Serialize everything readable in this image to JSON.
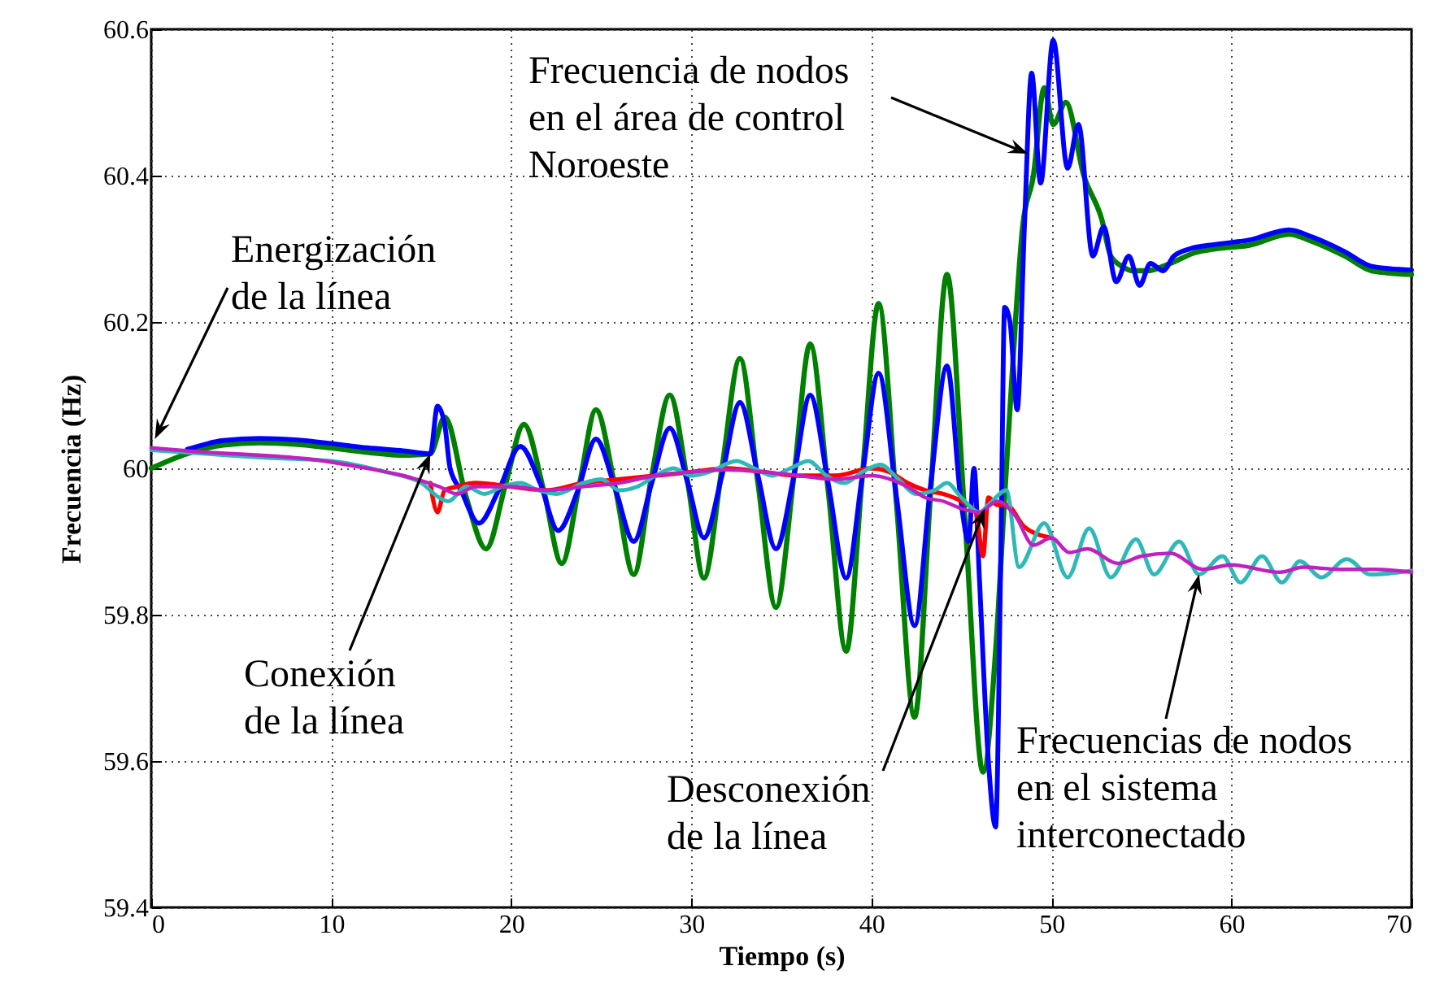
{
  "chart_data": {
    "type": "line",
    "xlabel": "Tiempo (s)",
    "ylabel": "Frecuencia (Hz)",
    "xlim": [
      0,
      70
    ],
    "xticks": [
      0,
      10,
      20,
      30,
      40,
      50,
      60,
      70
    ],
    "ylim": [
      59.4,
      60.6
    ],
    "yticks": [
      59.4,
      59.6,
      59.8,
      {
        "value": 60,
        "label": "60"
      },
      60.2,
      60.4,
      60.6
    ],
    "grid": true,
    "series": [
      {
        "color": "#008000",
        "x": [
          0,
          2,
          4,
          6,
          8,
          10,
          12,
          14,
          15.5,
          16.3,
          17.5,
          18.6,
          19.7,
          20.7,
          21.8,
          22.8,
          23.8,
          24.7,
          25.8,
          26.8,
          27.8,
          28.8,
          29.8,
          30.7,
          31.7,
          32.7,
          33.7,
          34.7,
          35.7,
          36.6,
          37.6,
          38.6,
          39.5,
          40.4,
          41.4,
          42.4,
          43.3,
          44.2,
          45.2,
          46.2,
          46.9,
          47.4,
          48.0,
          48.4,
          49.0,
          49.6,
          50.1,
          50.8,
          51.8,
          52.8,
          53.3,
          54.0,
          54.5,
          55.3,
          56.6,
          58,
          59.1,
          61,
          63.2,
          64.5,
          66.3,
          67.8,
          70
        ],
        "values": [
          60.0,
          60.02,
          60.032,
          60.035,
          60.033,
          60.028,
          60.022,
          60.018,
          60.02,
          60.07,
          59.96,
          59.89,
          59.98,
          60.06,
          59.97,
          59.87,
          59.98,
          60.08,
          59.97,
          59.855,
          59.99,
          60.1,
          59.98,
          59.85,
          60.0,
          60.15,
          59.98,
          59.81,
          59.99,
          60.17,
          59.97,
          59.75,
          59.99,
          60.225,
          59.95,
          59.66,
          59.97,
          60.265,
          59.93,
          59.585,
          59.75,
          59.96,
          60.2,
          60.33,
          60.4,
          60.52,
          60.47,
          60.5,
          60.4,
          60.34,
          60.29,
          60.275,
          60.27,
          60.27,
          60.28,
          60.295,
          60.3,
          60.305,
          60.32,
          60.31,
          60.29,
          60.27,
          60.265
        ]
      },
      {
        "color": "#0000ff",
        "x": [
          2,
          4,
          6,
          8,
          10,
          12,
          14,
          15.5,
          15.9,
          16.3,
          16.6,
          17.2,
          18.2,
          19.3,
          20.5,
          21.6,
          22.6,
          23.7,
          24.7,
          25.8,
          26.8,
          27.8,
          28.8,
          29.8,
          30.7,
          31.7,
          32.7,
          33.7,
          34.7,
          35.7,
          36.6,
          37.6,
          38.6,
          39.5,
          40.4,
          41.4,
          42.4,
          43.3,
          44.2,
          45.0,
          45.4,
          45.7,
          46.0,
          46.5,
          46.9,
          47.2,
          47.4,
          47.7,
          48.1,
          48.5,
          48.9,
          49.4,
          50.1,
          50.9,
          51.5,
          52.3,
          52.9,
          53.6,
          54.3,
          54.9,
          55.5,
          56.2,
          56.8,
          57.7,
          59.1,
          61,
          63.2,
          64.5,
          66.3,
          67.8,
          70
        ],
        "values": [
          60.026,
          60.038,
          60.041,
          60.039,
          60.034,
          60.028,
          60.024,
          60.02,
          60.085,
          60.06,
          60.0,
          59.97,
          59.925,
          59.97,
          60.03,
          59.98,
          59.915,
          59.97,
          60.04,
          59.97,
          59.9,
          59.98,
          60.055,
          59.98,
          59.905,
          59.99,
          60.09,
          59.99,
          59.89,
          59.99,
          60.1,
          59.98,
          59.85,
          59.99,
          60.13,
          59.96,
          59.785,
          59.98,
          60.14,
          59.95,
          59.9,
          60.0,
          59.85,
          59.6,
          59.51,
          59.9,
          60.22,
          60.2,
          60.08,
          60.33,
          60.54,
          60.39,
          60.585,
          60.41,
          60.47,
          60.29,
          60.33,
          60.255,
          60.29,
          60.25,
          60.28,
          60.27,
          60.29,
          60.3,
          60.306,
          60.312,
          60.326,
          60.316,
          60.296,
          60.276,
          60.271
        ]
      },
      {
        "color": "#ff0000",
        "x": [
          15.5,
          15.9,
          16.3,
          17,
          18,
          20,
          22,
          24,
          26,
          28,
          30,
          32,
          34,
          36,
          38,
          40,
          41,
          42,
          43,
          44,
          45,
          45.8,
          46.2,
          46.5,
          47.0,
          47.5,
          48.5,
          50
        ],
        "values": [
          59.98,
          59.94,
          59.97,
          59.975,
          59.98,
          59.975,
          59.97,
          59.98,
          59.985,
          59.99,
          59.995,
          60.0,
          59.995,
          59.99,
          59.99,
          60.0,
          59.995,
          59.98,
          59.97,
          59.965,
          59.955,
          59.94,
          59.88,
          59.96,
          59.95,
          59.95,
          59.92,
          59.905
        ]
      },
      {
        "color": "#30b8b8",
        "x": [
          0,
          3,
          6,
          10,
          13,
          15,
          16,
          16.5,
          17.5,
          18.5,
          19.5,
          20.5,
          21.5,
          22.5,
          24,
          25,
          26,
          27,
          28,
          29,
          30,
          31,
          32.5,
          33.5,
          34.5,
          35.5,
          36.5,
          37.5,
          38.5,
          39.5,
          40.5,
          41.5,
          42.5,
          43.5,
          44.2,
          45,
          46,
          46.5,
          47.5,
          48.2,
          49.6,
          50.9,
          52.1,
          53.3,
          54.7,
          55.7,
          57.1,
          58.2,
          59.5,
          60.5,
          61.7,
          62.8,
          63.8,
          65.0,
          66.4,
          67.7,
          70
        ],
        "values": [
          60.025,
          60.02,
          60.015,
          60.01,
          59.995,
          59.98,
          59.96,
          59.955,
          59.975,
          59.965,
          59.975,
          59.98,
          59.97,
          59.965,
          59.98,
          59.985,
          59.97,
          59.975,
          59.99,
          60.0,
          59.99,
          59.995,
          60.01,
          60.0,
          59.99,
          60.0,
          60.01,
          59.99,
          59.98,
          59.995,
          60.005,
          59.985,
          59.965,
          59.97,
          59.98,
          59.96,
          59.94,
          59.95,
          59.97,
          59.865,
          59.925,
          59.851,
          59.918,
          59.851,
          59.903,
          59.855,
          59.9,
          59.855,
          59.88,
          59.844,
          59.88,
          59.844,
          59.873,
          59.851,
          59.876,
          59.855,
          59.86
        ]
      },
      {
        "color": "#c020c0",
        "x": [
          0,
          3,
          6,
          9,
          12,
          14,
          16,
          17,
          18,
          20,
          22,
          24,
          26,
          28,
          30,
          32,
          34,
          36,
          38,
          40,
          42,
          43,
          44,
          45,
          46,
          47,
          48,
          49,
          50,
          51,
          52,
          53.7,
          55,
          56.6,
          58.4,
          60,
          62.7,
          64,
          66,
          68,
          70
        ],
        "values": [
          60.028,
          60.022,
          60.018,
          60.012,
          60.0,
          59.99,
          59.975,
          59.965,
          59.975,
          59.975,
          59.97,
          59.975,
          59.98,
          59.99,
          59.995,
          59.998,
          59.995,
          59.99,
          59.985,
          59.99,
          59.975,
          59.96,
          59.955,
          59.945,
          59.94,
          59.955,
          59.935,
          59.895,
          59.905,
          59.885,
          59.89,
          59.87,
          59.88,
          59.884,
          59.862,
          59.868,
          59.858,
          59.865,
          59.862,
          59.862,
          59.858
        ]
      }
    ],
    "annotations": [
      {
        "text": "Energización\nde la línea",
        "x": 0.2,
        "y": 60.04
      },
      {
        "text": "Conexión\nde la línea",
        "x": 15.5,
        "y": 60.02
      },
      {
        "text": "Desconexión\nde la línea",
        "x": 46.3,
        "y": 59.945
      },
      {
        "text": "Frecuencias de nodos\nen el sistema\ninterconectado",
        "x": 58.2,
        "y": 59.855
      },
      {
        "text": "Frecuencia de nodos\nen el área de control\nNoroeste",
        "x": 48.7,
        "y": 60.43
      }
    ]
  }
}
